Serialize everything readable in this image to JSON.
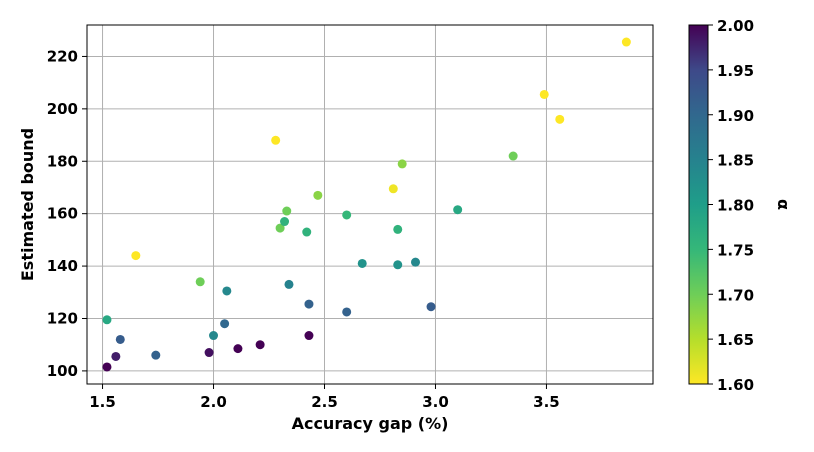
{
  "chart_data": {
    "type": "scatter",
    "xlabel": "Accuracy gap (%)",
    "ylabel": "Estimated bound",
    "xlim": [
      1.43,
      3.98
    ],
    "ylim": [
      95,
      232
    ],
    "xticks": [
      "1.5",
      "2.0",
      "2.5",
      "3.0",
      "3.5"
    ],
    "yticks": [
      "100",
      "120",
      "140",
      "160",
      "180",
      "200",
      "220"
    ],
    "grid": true,
    "colorbar": {
      "label": "α",
      "min": 1.6,
      "max": 2.0,
      "ticks": [
        "1.60",
        "1.65",
        "1.70",
        "1.75",
        "1.80",
        "1.85",
        "1.90",
        "1.95",
        "2.00"
      ],
      "colormap": "viridis"
    },
    "points": [
      {
        "x": 3.86,
        "y": 225.5,
        "alpha": 1.6
      },
      {
        "x": 3.49,
        "y": 205.5,
        "alpha": 1.6
      },
      {
        "x": 3.56,
        "y": 196.0,
        "alpha": 1.6
      },
      {
        "x": 2.28,
        "y": 188.0,
        "alpha": 1.6
      },
      {
        "x": 2.81,
        "y": 169.5,
        "alpha": 1.61
      },
      {
        "x": 1.65,
        "y": 144.0,
        "alpha": 1.6
      },
      {
        "x": 2.85,
        "y": 179.0,
        "alpha": 1.68
      },
      {
        "x": 3.35,
        "y": 182.0,
        "alpha": 1.7
      },
      {
        "x": 2.47,
        "y": 167.0,
        "alpha": 1.68
      },
      {
        "x": 2.33,
        "y": 161.0,
        "alpha": 1.7
      },
      {
        "x": 2.3,
        "y": 154.5,
        "alpha": 1.7
      },
      {
        "x": 1.94,
        "y": 134.0,
        "alpha": 1.7
      },
      {
        "x": 2.32,
        "y": 157.0,
        "alpha": 1.76
      },
      {
        "x": 2.6,
        "y": 159.5,
        "alpha": 1.75
      },
      {
        "x": 2.42,
        "y": 153.0,
        "alpha": 1.76
      },
      {
        "x": 2.83,
        "y": 154.0,
        "alpha": 1.76
      },
      {
        "x": 3.1,
        "y": 161.5,
        "alpha": 1.78
      },
      {
        "x": 1.52,
        "y": 119.5,
        "alpha": 1.78
      },
      {
        "x": 2.67,
        "y": 141.0,
        "alpha": 1.82
      },
      {
        "x": 2.83,
        "y": 140.5,
        "alpha": 1.82
      },
      {
        "x": 2.91,
        "y": 141.5,
        "alpha": 1.84
      },
      {
        "x": 2.34,
        "y": 133.0,
        "alpha": 1.85
      },
      {
        "x": 2.06,
        "y": 130.5,
        "alpha": 1.84
      },
      {
        "x": 2.0,
        "y": 113.5,
        "alpha": 1.84
      },
      {
        "x": 2.05,
        "y": 118.0,
        "alpha": 1.9
      },
      {
        "x": 2.43,
        "y": 125.5,
        "alpha": 1.91
      },
      {
        "x": 2.6,
        "y": 122.5,
        "alpha": 1.91
      },
      {
        "x": 2.98,
        "y": 124.5,
        "alpha": 1.92
      },
      {
        "x": 1.58,
        "y": 112.0,
        "alpha": 1.92
      },
      {
        "x": 1.74,
        "y": 106.0,
        "alpha": 1.91
      },
      {
        "x": 1.56,
        "y": 105.5,
        "alpha": 1.98
      },
      {
        "x": 1.52,
        "y": 101.5,
        "alpha": 2.0
      },
      {
        "x": 1.98,
        "y": 107.0,
        "alpha": 1.99
      },
      {
        "x": 2.11,
        "y": 108.5,
        "alpha": 2.0
      },
      {
        "x": 2.21,
        "y": 110.0,
        "alpha": 2.0
      },
      {
        "x": 2.43,
        "y": 113.5,
        "alpha": 2.0
      }
    ]
  }
}
